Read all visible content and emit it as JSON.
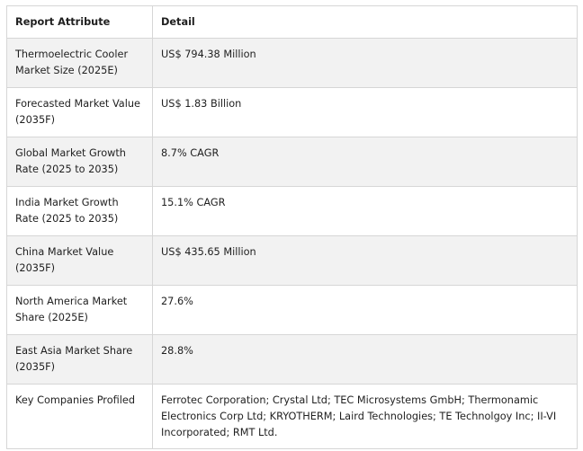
{
  "table": {
    "headers": [
      "Report Attribute",
      "Detail"
    ],
    "rows": [
      {
        "attribute": "Thermoelectric Cooler Market Size (2025E)",
        "detail": "US$ 794.38 Million"
      },
      {
        "attribute": "Forecasted Market Value (2035F)",
        "detail": "US$ 1.83 Billion"
      },
      {
        "attribute": "Global Market Growth Rate (2025 to 2035)",
        "detail": "8.7% CAGR"
      },
      {
        "attribute": "India Market Growth Rate (2025 to 2035)",
        "detail": "15.1% CAGR"
      },
      {
        "attribute": "China Market Value (2035F)",
        "detail": "US$ 435.65 Million"
      },
      {
        "attribute": "North America Market Share (2025E)",
        "detail": "27.6%"
      },
      {
        "attribute": "East Asia Market Share (2035F)",
        "detail": "28.8%"
      },
      {
        "attribute": "Key Companies Profiled",
        "detail": "Ferrotec Corporation; Crystal Ltd; TEC Microsystems GmbH; Thermonamic Electronics Corp Ltd; KRYOTHERM; Laird Technologies; TE Technolgoy Inc; II-VI Incorporated; RMT Ltd."
      }
    ]
  }
}
